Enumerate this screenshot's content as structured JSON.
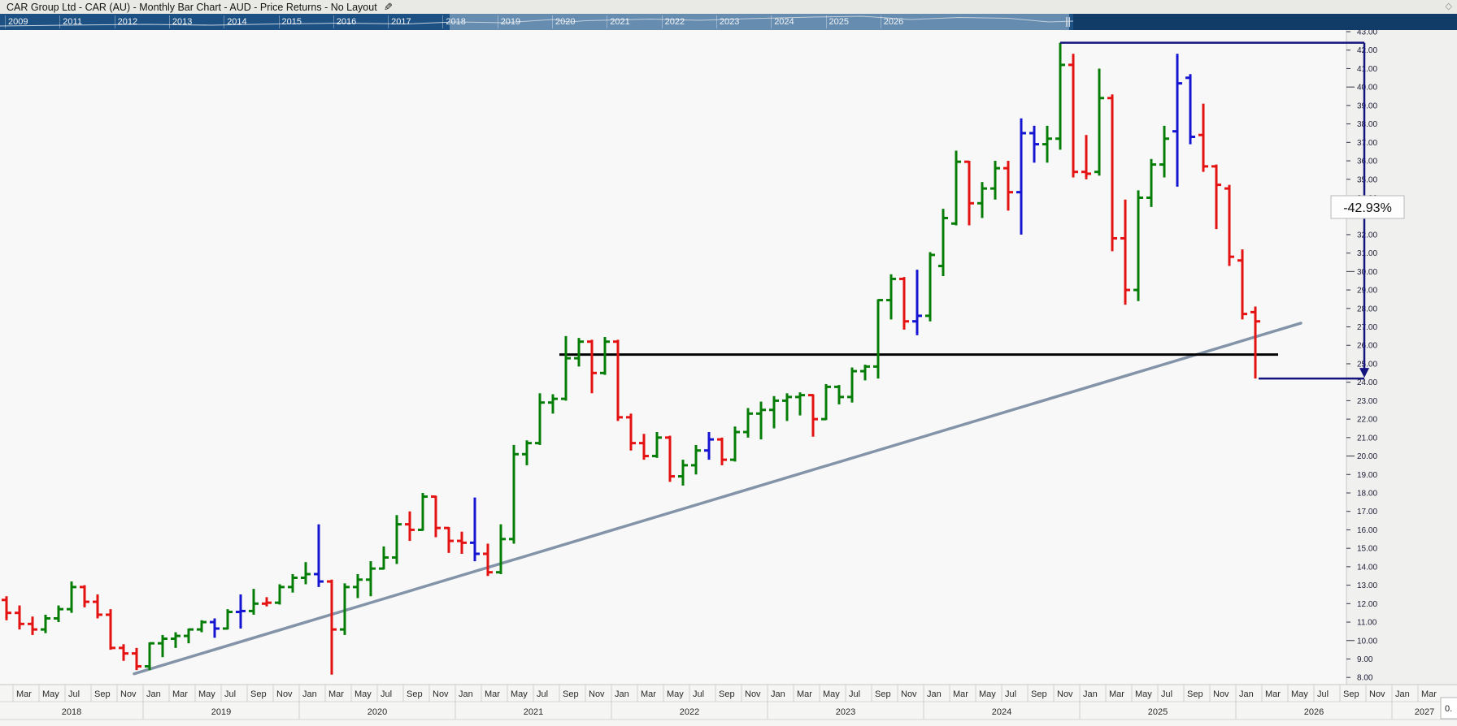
{
  "window": {
    "title": "CAR Group Ltd - CAR (AU) - Monthly Bar Chart - AUD - Price Returns - No Layout",
    "edit_icon": "pencil",
    "corner_icon": "diamond"
  },
  "timeline": {
    "years": [
      "2009",
      "2011",
      "2012",
      "2013",
      "2014",
      "2015",
      "2016",
      "2017",
      "2018",
      "2019",
      "2020",
      "2021",
      "2022",
      "2023",
      "2024",
      "2025",
      "2026"
    ],
    "selection": {
      "start_year": "2018",
      "end_year": "2026",
      "handle": "drag-handle"
    }
  },
  "price_axis": {
    "min": 8,
    "max": 43,
    "step": 1,
    "major_every": 10,
    "format": "0.00"
  },
  "time_axis": {
    "month_labels": [
      "Jan",
      "Mar",
      "May",
      "Jul",
      "Sep",
      "Nov"
    ],
    "years": [
      "2018",
      "2019",
      "2020",
      "2021",
      "2022",
      "2023",
      "2024",
      "2025",
      "2026",
      "2027"
    ]
  },
  "annotations": {
    "support_line": {
      "price": 25.5,
      "color": "#000000",
      "from": "2021-09",
      "to": "2026-03"
    },
    "trendline": {
      "color": "#8494a8",
      "from_price": 8.2,
      "from": "2018-12",
      "to_price": 27.2,
      "to": "2026-05"
    },
    "measurement": {
      "label": "-42.93%",
      "from_price": 42.4,
      "to_price": 24.2,
      "color": "#14147e"
    }
  },
  "status_box": {
    "text": "0."
  },
  "colors": {
    "up": "#067d06",
    "down": "#e51212",
    "neutral": "#1414d2",
    "plot_bg": "#f8f8f8",
    "axis_bg": "#f0f0ef",
    "navy": "#14147e"
  },
  "chart_data": {
    "type": "bar",
    "subtype": "ohlc",
    "title": "CAR Group Ltd - CAR (AU)",
    "interval": "Monthly",
    "currency": "AUD",
    "ylim": [
      8,
      43
    ],
    "legend": "none",
    "grid": "off",
    "bars": [
      {
        "t": "2018-02",
        "o": 12.2,
        "h": 12.4,
        "l": 11.1,
        "c": 11.5,
        "col": "r"
      },
      {
        "t": "2018-03",
        "o": 11.5,
        "h": 11.9,
        "l": 10.6,
        "c": 10.9,
        "col": "r"
      },
      {
        "t": "2018-04",
        "o": 10.9,
        "h": 11.3,
        "l": 10.3,
        "c": 10.6,
        "col": "r"
      },
      {
        "t": "2018-05",
        "o": 10.6,
        "h": 11.4,
        "l": 10.4,
        "c": 11.2,
        "col": "g"
      },
      {
        "t": "2018-06",
        "o": 11.2,
        "h": 11.9,
        "l": 11.0,
        "c": 11.7,
        "col": "g"
      },
      {
        "t": "2018-07",
        "o": 11.7,
        "h": 13.2,
        "l": 11.5,
        "c": 12.9,
        "col": "g"
      },
      {
        "t": "2018-08",
        "o": 12.9,
        "h": 13.0,
        "l": 11.8,
        "c": 12.1,
        "col": "r"
      },
      {
        "t": "2018-09",
        "o": 12.1,
        "h": 12.5,
        "l": 11.2,
        "c": 11.4,
        "col": "r"
      },
      {
        "t": "2018-10",
        "o": 11.4,
        "h": 11.7,
        "l": 9.5,
        "c": 9.6,
        "col": "r"
      },
      {
        "t": "2018-11",
        "o": 9.6,
        "h": 9.8,
        "l": 8.9,
        "c": 9.3,
        "col": "r"
      },
      {
        "t": "2018-12",
        "o": 9.3,
        "h": 9.6,
        "l": 8.4,
        "c": 8.6,
        "col": "r"
      },
      {
        "t": "2019-01",
        "o": 8.6,
        "h": 9.9,
        "l": 8.4,
        "c": 9.85,
        "col": "g"
      },
      {
        "t": "2019-02",
        "o": 9.85,
        "h": 10.3,
        "l": 9.1,
        "c": 10.1,
        "col": "g"
      },
      {
        "t": "2019-03",
        "o": 10.1,
        "h": 10.45,
        "l": 9.6,
        "c": 10.25,
        "col": "g"
      },
      {
        "t": "2019-04",
        "o": 10.25,
        "h": 10.65,
        "l": 9.85,
        "c": 10.6,
        "col": "g"
      },
      {
        "t": "2019-05",
        "o": 10.6,
        "h": 11.1,
        "l": 10.45,
        "c": 11.0,
        "col": "g"
      },
      {
        "t": "2019-06",
        "o": 11.0,
        "h": 11.2,
        "l": 10.15,
        "c": 10.65,
        "col": "b"
      },
      {
        "t": "2019-07",
        "o": 10.65,
        "h": 11.7,
        "l": 10.6,
        "c": 11.55,
        "col": "g"
      },
      {
        "t": "2019-08",
        "o": 11.55,
        "h": 12.5,
        "l": 10.65,
        "c": 11.6,
        "col": "b"
      },
      {
        "t": "2019-09",
        "o": 11.6,
        "h": 12.8,
        "l": 11.4,
        "c": 12.0,
        "col": "g"
      },
      {
        "t": "2019-10",
        "o": 12.0,
        "h": 12.35,
        "l": 11.85,
        "c": 12.05,
        "col": "r"
      },
      {
        "t": "2019-11",
        "o": 12.05,
        "h": 13.05,
        "l": 11.95,
        "c": 12.9,
        "col": "g"
      },
      {
        "t": "2019-12",
        "o": 12.9,
        "h": 13.6,
        "l": 12.6,
        "c": 13.4,
        "col": "g"
      },
      {
        "t": "2020-01",
        "o": 13.4,
        "h": 14.25,
        "l": 13.05,
        "c": 13.6,
        "col": "g"
      },
      {
        "t": "2020-02",
        "o": 13.6,
        "h": 16.3,
        "l": 12.9,
        "c": 13.2,
        "col": "b"
      },
      {
        "t": "2020-03",
        "o": 13.2,
        "h": 13.3,
        "l": 8.15,
        "c": 10.6,
        "col": "r"
      },
      {
        "t": "2020-04",
        "o": 10.6,
        "h": 13.1,
        "l": 10.3,
        "c": 12.9,
        "col": "g"
      },
      {
        "t": "2020-05",
        "o": 12.9,
        "h": 13.6,
        "l": 12.3,
        "c": 13.3,
        "col": "g"
      },
      {
        "t": "2020-06",
        "o": 13.3,
        "h": 14.3,
        "l": 12.4,
        "c": 13.9,
        "col": "g"
      },
      {
        "t": "2020-07",
        "o": 13.9,
        "h": 15.1,
        "l": 13.85,
        "c": 14.5,
        "col": "g"
      },
      {
        "t": "2020-08",
        "o": 14.5,
        "h": 16.8,
        "l": 14.15,
        "c": 16.3,
        "col": "g"
      },
      {
        "t": "2020-09",
        "o": 16.3,
        "h": 17.0,
        "l": 15.4,
        "c": 16.0,
        "col": "r"
      },
      {
        "t": "2020-10",
        "o": 16.0,
        "h": 18.0,
        "l": 15.95,
        "c": 17.8,
        "col": "g"
      },
      {
        "t": "2020-11",
        "o": 17.8,
        "h": 17.85,
        "l": 15.6,
        "c": 16.1,
        "col": "r"
      },
      {
        "t": "2020-12",
        "o": 16.1,
        "h": 16.15,
        "l": 14.75,
        "c": 15.4,
        "col": "r"
      },
      {
        "t": "2021-01",
        "o": 15.4,
        "h": 15.9,
        "l": 14.7,
        "c": 15.3,
        "col": "r"
      },
      {
        "t": "2021-02",
        "o": 15.3,
        "h": 17.75,
        "l": 14.3,
        "c": 14.7,
        "col": "b"
      },
      {
        "t": "2021-03",
        "o": 14.7,
        "h": 15.25,
        "l": 13.5,
        "c": 13.7,
        "col": "r"
      },
      {
        "t": "2021-04",
        "o": 13.7,
        "h": 16.3,
        "l": 13.6,
        "c": 15.5,
        "col": "g"
      },
      {
        "t": "2021-05",
        "o": 15.5,
        "h": 20.6,
        "l": 15.25,
        "c": 20.1,
        "col": "g"
      },
      {
        "t": "2021-06",
        "o": 20.1,
        "h": 20.85,
        "l": 19.5,
        "c": 20.7,
        "col": "g"
      },
      {
        "t": "2021-07",
        "o": 20.7,
        "h": 23.4,
        "l": 20.6,
        "c": 22.9,
        "col": "g"
      },
      {
        "t": "2021-08",
        "o": 22.9,
        "h": 23.35,
        "l": 22.3,
        "c": 23.1,
        "col": "g"
      },
      {
        "t": "2021-09",
        "o": 23.1,
        "h": 26.5,
        "l": 23.0,
        "c": 25.3,
        "col": "g"
      },
      {
        "t": "2021-10",
        "o": 25.3,
        "h": 26.4,
        "l": 24.85,
        "c": 26.2,
        "col": "g"
      },
      {
        "t": "2021-11",
        "o": 26.2,
        "h": 26.3,
        "l": 23.4,
        "c": 24.5,
        "col": "r"
      },
      {
        "t": "2021-12",
        "o": 24.5,
        "h": 26.45,
        "l": 24.4,
        "c": 26.2,
        "col": "g"
      },
      {
        "t": "2022-01",
        "o": 26.2,
        "h": 26.3,
        "l": 21.9,
        "c": 22.1,
        "col": "r"
      },
      {
        "t": "2022-02",
        "o": 22.1,
        "h": 22.3,
        "l": 20.3,
        "c": 20.7,
        "col": "r"
      },
      {
        "t": "2022-03",
        "o": 20.7,
        "h": 21.2,
        "l": 19.8,
        "c": 20.0,
        "col": "r"
      },
      {
        "t": "2022-04",
        "o": 20.0,
        "h": 21.3,
        "l": 19.9,
        "c": 21.0,
        "col": "g"
      },
      {
        "t": "2022-05",
        "o": 21.0,
        "h": 21.1,
        "l": 18.6,
        "c": 18.9,
        "col": "r"
      },
      {
        "t": "2022-06",
        "o": 18.9,
        "h": 19.8,
        "l": 18.4,
        "c": 19.5,
        "col": "g"
      },
      {
        "t": "2022-07",
        "o": 19.5,
        "h": 20.6,
        "l": 19.0,
        "c": 20.3,
        "col": "g"
      },
      {
        "t": "2022-08",
        "o": 20.3,
        "h": 21.3,
        "l": 19.8,
        "c": 20.9,
        "col": "b"
      },
      {
        "t": "2022-09",
        "o": 20.9,
        "h": 21.0,
        "l": 19.5,
        "c": 19.8,
        "col": "r"
      },
      {
        "t": "2022-10",
        "o": 19.8,
        "h": 21.6,
        "l": 19.7,
        "c": 21.3,
        "col": "g"
      },
      {
        "t": "2022-11",
        "o": 21.3,
        "h": 22.6,
        "l": 21.0,
        "c": 22.3,
        "col": "g"
      },
      {
        "t": "2022-12",
        "o": 22.3,
        "h": 22.95,
        "l": 20.9,
        "c": 22.5,
        "col": "g"
      },
      {
        "t": "2023-01",
        "o": 22.5,
        "h": 23.25,
        "l": 21.5,
        "c": 23.0,
        "col": "g"
      },
      {
        "t": "2023-02",
        "o": 23.0,
        "h": 23.4,
        "l": 21.9,
        "c": 23.2,
        "col": "g"
      },
      {
        "t": "2023-03",
        "o": 23.2,
        "h": 23.45,
        "l": 22.2,
        "c": 23.3,
        "col": "g"
      },
      {
        "t": "2023-04",
        "o": 23.3,
        "h": 23.35,
        "l": 21.05,
        "c": 22.0,
        "col": "r"
      },
      {
        "t": "2023-05",
        "o": 22.0,
        "h": 23.9,
        "l": 21.95,
        "c": 23.75,
        "col": "g"
      },
      {
        "t": "2023-06",
        "o": 23.75,
        "h": 23.85,
        "l": 22.8,
        "c": 23.2,
        "col": "g"
      },
      {
        "t": "2023-07",
        "o": 23.2,
        "h": 24.8,
        "l": 22.9,
        "c": 24.6,
        "col": "g"
      },
      {
        "t": "2023-08",
        "o": 24.6,
        "h": 24.95,
        "l": 24.1,
        "c": 24.85,
        "col": "g"
      },
      {
        "t": "2023-09",
        "o": 24.85,
        "h": 28.5,
        "l": 24.2,
        "c": 28.45,
        "col": "g"
      },
      {
        "t": "2023-10",
        "o": 28.45,
        "h": 29.85,
        "l": 27.4,
        "c": 29.6,
        "col": "g"
      },
      {
        "t": "2023-11",
        "o": 29.6,
        "h": 29.7,
        "l": 26.85,
        "c": 27.3,
        "col": "r"
      },
      {
        "t": "2023-12",
        "o": 27.3,
        "h": 30.1,
        "l": 26.55,
        "c": 27.6,
        "col": "b"
      },
      {
        "t": "2024-01",
        "o": 27.6,
        "h": 31.05,
        "l": 27.3,
        "c": 30.9,
        "col": "g"
      },
      {
        "t": "2024-02",
        "o": 30.3,
        "h": 33.4,
        "l": 29.75,
        "c": 32.9,
        "col": "g"
      },
      {
        "t": "2024-03",
        "o": 32.6,
        "h": 36.55,
        "l": 32.5,
        "c": 35.95,
        "col": "g"
      },
      {
        "t": "2024-04",
        "o": 35.95,
        "h": 36.0,
        "l": 32.5,
        "c": 33.7,
        "col": "r"
      },
      {
        "t": "2024-05",
        "o": 33.7,
        "h": 34.85,
        "l": 32.9,
        "c": 34.5,
        "col": "g"
      },
      {
        "t": "2024-06",
        "o": 34.5,
        "h": 36.0,
        "l": 33.9,
        "c": 35.6,
        "col": "g"
      },
      {
        "t": "2024-07",
        "o": 35.6,
        "h": 36.0,
        "l": 33.3,
        "c": 34.3,
        "col": "r"
      },
      {
        "t": "2024-08",
        "o": 34.3,
        "h": 38.3,
        "l": 32.0,
        "c": 37.5,
        "col": "b"
      },
      {
        "t": "2024-09",
        "o": 37.5,
        "h": 37.9,
        "l": 35.9,
        "c": 36.9,
        "col": "b"
      },
      {
        "t": "2024-10",
        "o": 36.9,
        "h": 37.9,
        "l": 35.9,
        "c": 37.2,
        "col": "g"
      },
      {
        "t": "2024-11",
        "o": 37.2,
        "h": 42.4,
        "l": 36.6,
        "c": 41.2,
        "col": "g"
      },
      {
        "t": "2024-12",
        "o": 41.2,
        "h": 41.8,
        "l": 35.1,
        "c": 35.4,
        "col": "r"
      },
      {
        "t": "2025-01",
        "o": 35.4,
        "h": 37.4,
        "l": 35.0,
        "c": 35.3,
        "col": "r"
      },
      {
        "t": "2025-02",
        "o": 35.4,
        "h": 41.0,
        "l": 35.2,
        "c": 39.4,
        "col": "g"
      },
      {
        "t": "2025-03",
        "o": 39.4,
        "h": 39.6,
        "l": 31.1,
        "c": 31.8,
        "col": "r"
      },
      {
        "t": "2025-04",
        "o": 31.8,
        "h": 33.9,
        "l": 28.2,
        "c": 29.0,
        "col": "r"
      },
      {
        "t": "2025-05",
        "o": 29.0,
        "h": 34.4,
        "l": 28.4,
        "c": 34.0,
        "col": "g"
      },
      {
        "t": "2025-06",
        "o": 34.0,
        "h": 36.1,
        "l": 33.5,
        "c": 35.8,
        "col": "g"
      },
      {
        "t": "2025-07",
        "o": 35.8,
        "h": 37.9,
        "l": 35.1,
        "c": 37.2,
        "col": "g"
      },
      {
        "t": "2025-08",
        "o": 37.6,
        "h": 41.8,
        "l": 34.6,
        "c": 40.2,
        "col": "b"
      },
      {
        "t": "2025-09",
        "o": 40.5,
        "h": 40.7,
        "l": 36.9,
        "c": 37.3,
        "col": "b"
      },
      {
        "t": "2025-10",
        "o": 37.4,
        "h": 39.1,
        "l": 35.4,
        "c": 35.7,
        "col": "r"
      },
      {
        "t": "2025-11",
        "o": 35.7,
        "h": 35.8,
        "l": 32.3,
        "c": 34.7,
        "col": "r"
      },
      {
        "t": "2025-12",
        "o": 34.5,
        "h": 34.7,
        "l": 30.3,
        "c": 30.8,
        "col": "r"
      },
      {
        "t": "2026-01",
        "o": 30.6,
        "h": 31.2,
        "l": 27.4,
        "c": 27.7,
        "col": "r"
      },
      {
        "t": "2026-02",
        "o": 27.8,
        "h": 28.1,
        "l": 24.2,
        "c": 27.3,
        "col": "r"
      }
    ]
  }
}
